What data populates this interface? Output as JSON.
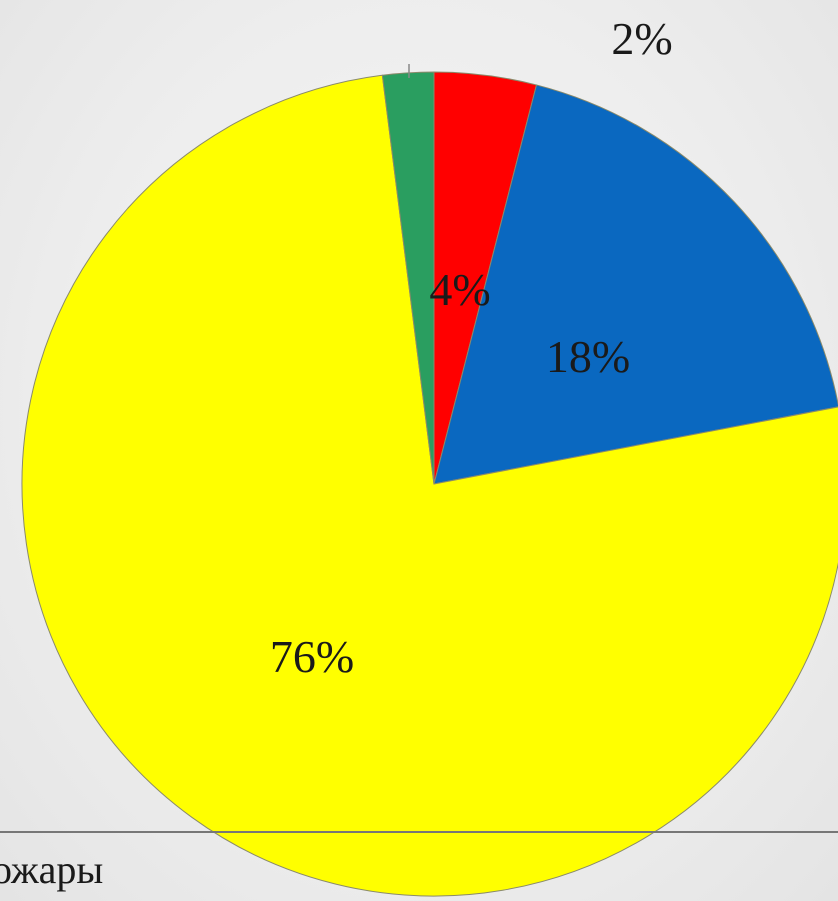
{
  "chart_data": {
    "type": "pie",
    "start": "top",
    "direction": "clockwise",
    "slices": [
      {
        "label": "4%",
        "value": 4,
        "color": "#ff0000"
      },
      {
        "label": "18%",
        "value": 18,
        "color": "#0a68c0"
      },
      {
        "label": "76%",
        "value": 76,
        "color": "#ffff00"
      },
      {
        "label": "2%",
        "value": 2,
        "color": "#2a9e60"
      }
    ],
    "legend": {
      "visible_entry_text": "ожары"
    }
  }
}
